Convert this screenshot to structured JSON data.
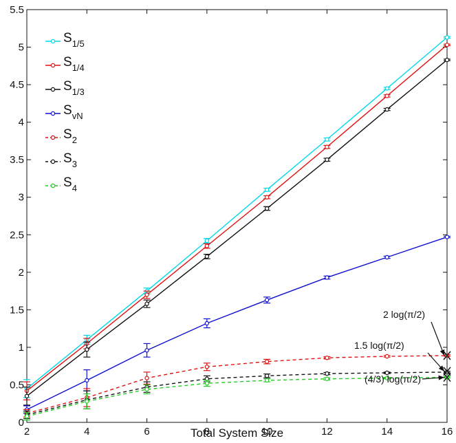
{
  "chart_data": {
    "type": "line",
    "title": "",
    "xlabel": "Total System Size",
    "ylabel": "",
    "xlim": [
      2,
      16
    ],
    "ylim": [
      0,
      5.5
    ],
    "x_ticks": [
      2,
      4,
      6,
      8,
      10,
      12,
      14,
      16
    ],
    "y_ticks": [
      0,
      0.5,
      1,
      1.5,
      2,
      2.5,
      3,
      3.5,
      4,
      4.5,
      5,
      5.5
    ],
    "grid": false,
    "legend_position": "top-left",
    "x": [
      2,
      4,
      6,
      8,
      10,
      12,
      14,
      16
    ],
    "series": [
      {
        "main": "S",
        "sub": "1/5",
        "color": "#00d8e8",
        "dashed": false,
        "values": [
          0.45,
          1.1,
          1.75,
          2.42,
          3.1,
          3.77,
          4.45,
          5.13
        ],
        "errors": [
          0.12,
          0.06,
          0.04,
          0.03,
          0.02,
          0.02,
          0.015,
          0.01
        ]
      },
      {
        "main": "S",
        "sub": "1/4",
        "color": "#e01010",
        "dashed": false,
        "values": [
          0.42,
          1.05,
          1.7,
          2.35,
          3.0,
          3.67,
          4.35,
          5.03
        ],
        "errors": [
          0.12,
          0.07,
          0.05,
          0.03,
          0.02,
          0.02,
          0.015,
          0.01
        ]
      },
      {
        "main": "S",
        "sub": "1/3",
        "color": "#111111",
        "dashed": false,
        "values": [
          0.35,
          0.97,
          1.58,
          2.21,
          2.85,
          3.5,
          4.17,
          4.83
        ],
        "errors": [
          0.12,
          0.1,
          0.05,
          0.03,
          0.025,
          0.02,
          0.015,
          0.01
        ]
      },
      {
        "main": "S",
        "sub": "vN",
        "color": "#1010d0",
        "dashed": false,
        "values": [
          0.17,
          0.56,
          0.96,
          1.32,
          1.63,
          1.93,
          2.2,
          2.47
        ],
        "errors": [
          0.05,
          0.14,
          0.09,
          0.06,
          0.04,
          0.02,
          0.015,
          0.01
        ]
      },
      {
        "main": "S",
        "sub": "2",
        "color": "#e01010",
        "dashed": true,
        "values": [
          0.12,
          0.33,
          0.59,
          0.74,
          0.81,
          0.86,
          0.88,
          0.89
        ],
        "errors": [
          0.05,
          0.12,
          0.08,
          0.05,
          0.03,
          0.015,
          0.01,
          0.01
        ]
      },
      {
        "main": "S",
        "sub": "3",
        "color": "#111111",
        "dashed": true,
        "values": [
          0.1,
          0.3,
          0.47,
          0.58,
          0.62,
          0.65,
          0.66,
          0.67
        ],
        "errors": [
          0.05,
          0.12,
          0.07,
          0.04,
          0.025,
          0.015,
          0.01,
          0.01
        ]
      },
      {
        "main": "S",
        "sub": "4",
        "color": "#22cc22",
        "dashed": true,
        "values": [
          0.08,
          0.28,
          0.44,
          0.52,
          0.56,
          0.58,
          0.59,
          0.6
        ],
        "errors": [
          0.05,
          0.1,
          0.06,
          0.04,
          0.02,
          0.015,
          0.01,
          0.01
        ]
      }
    ],
    "annotations": [
      {
        "text": "2 log(π/2)",
        "x": 16,
        "y": 0.89
      },
      {
        "text": "1.5 log(π/2)",
        "x": 16,
        "y": 0.68
      },
      {
        "text": "(4/3) log(π/2)",
        "x": 16,
        "y": 0.6
      }
    ]
  }
}
